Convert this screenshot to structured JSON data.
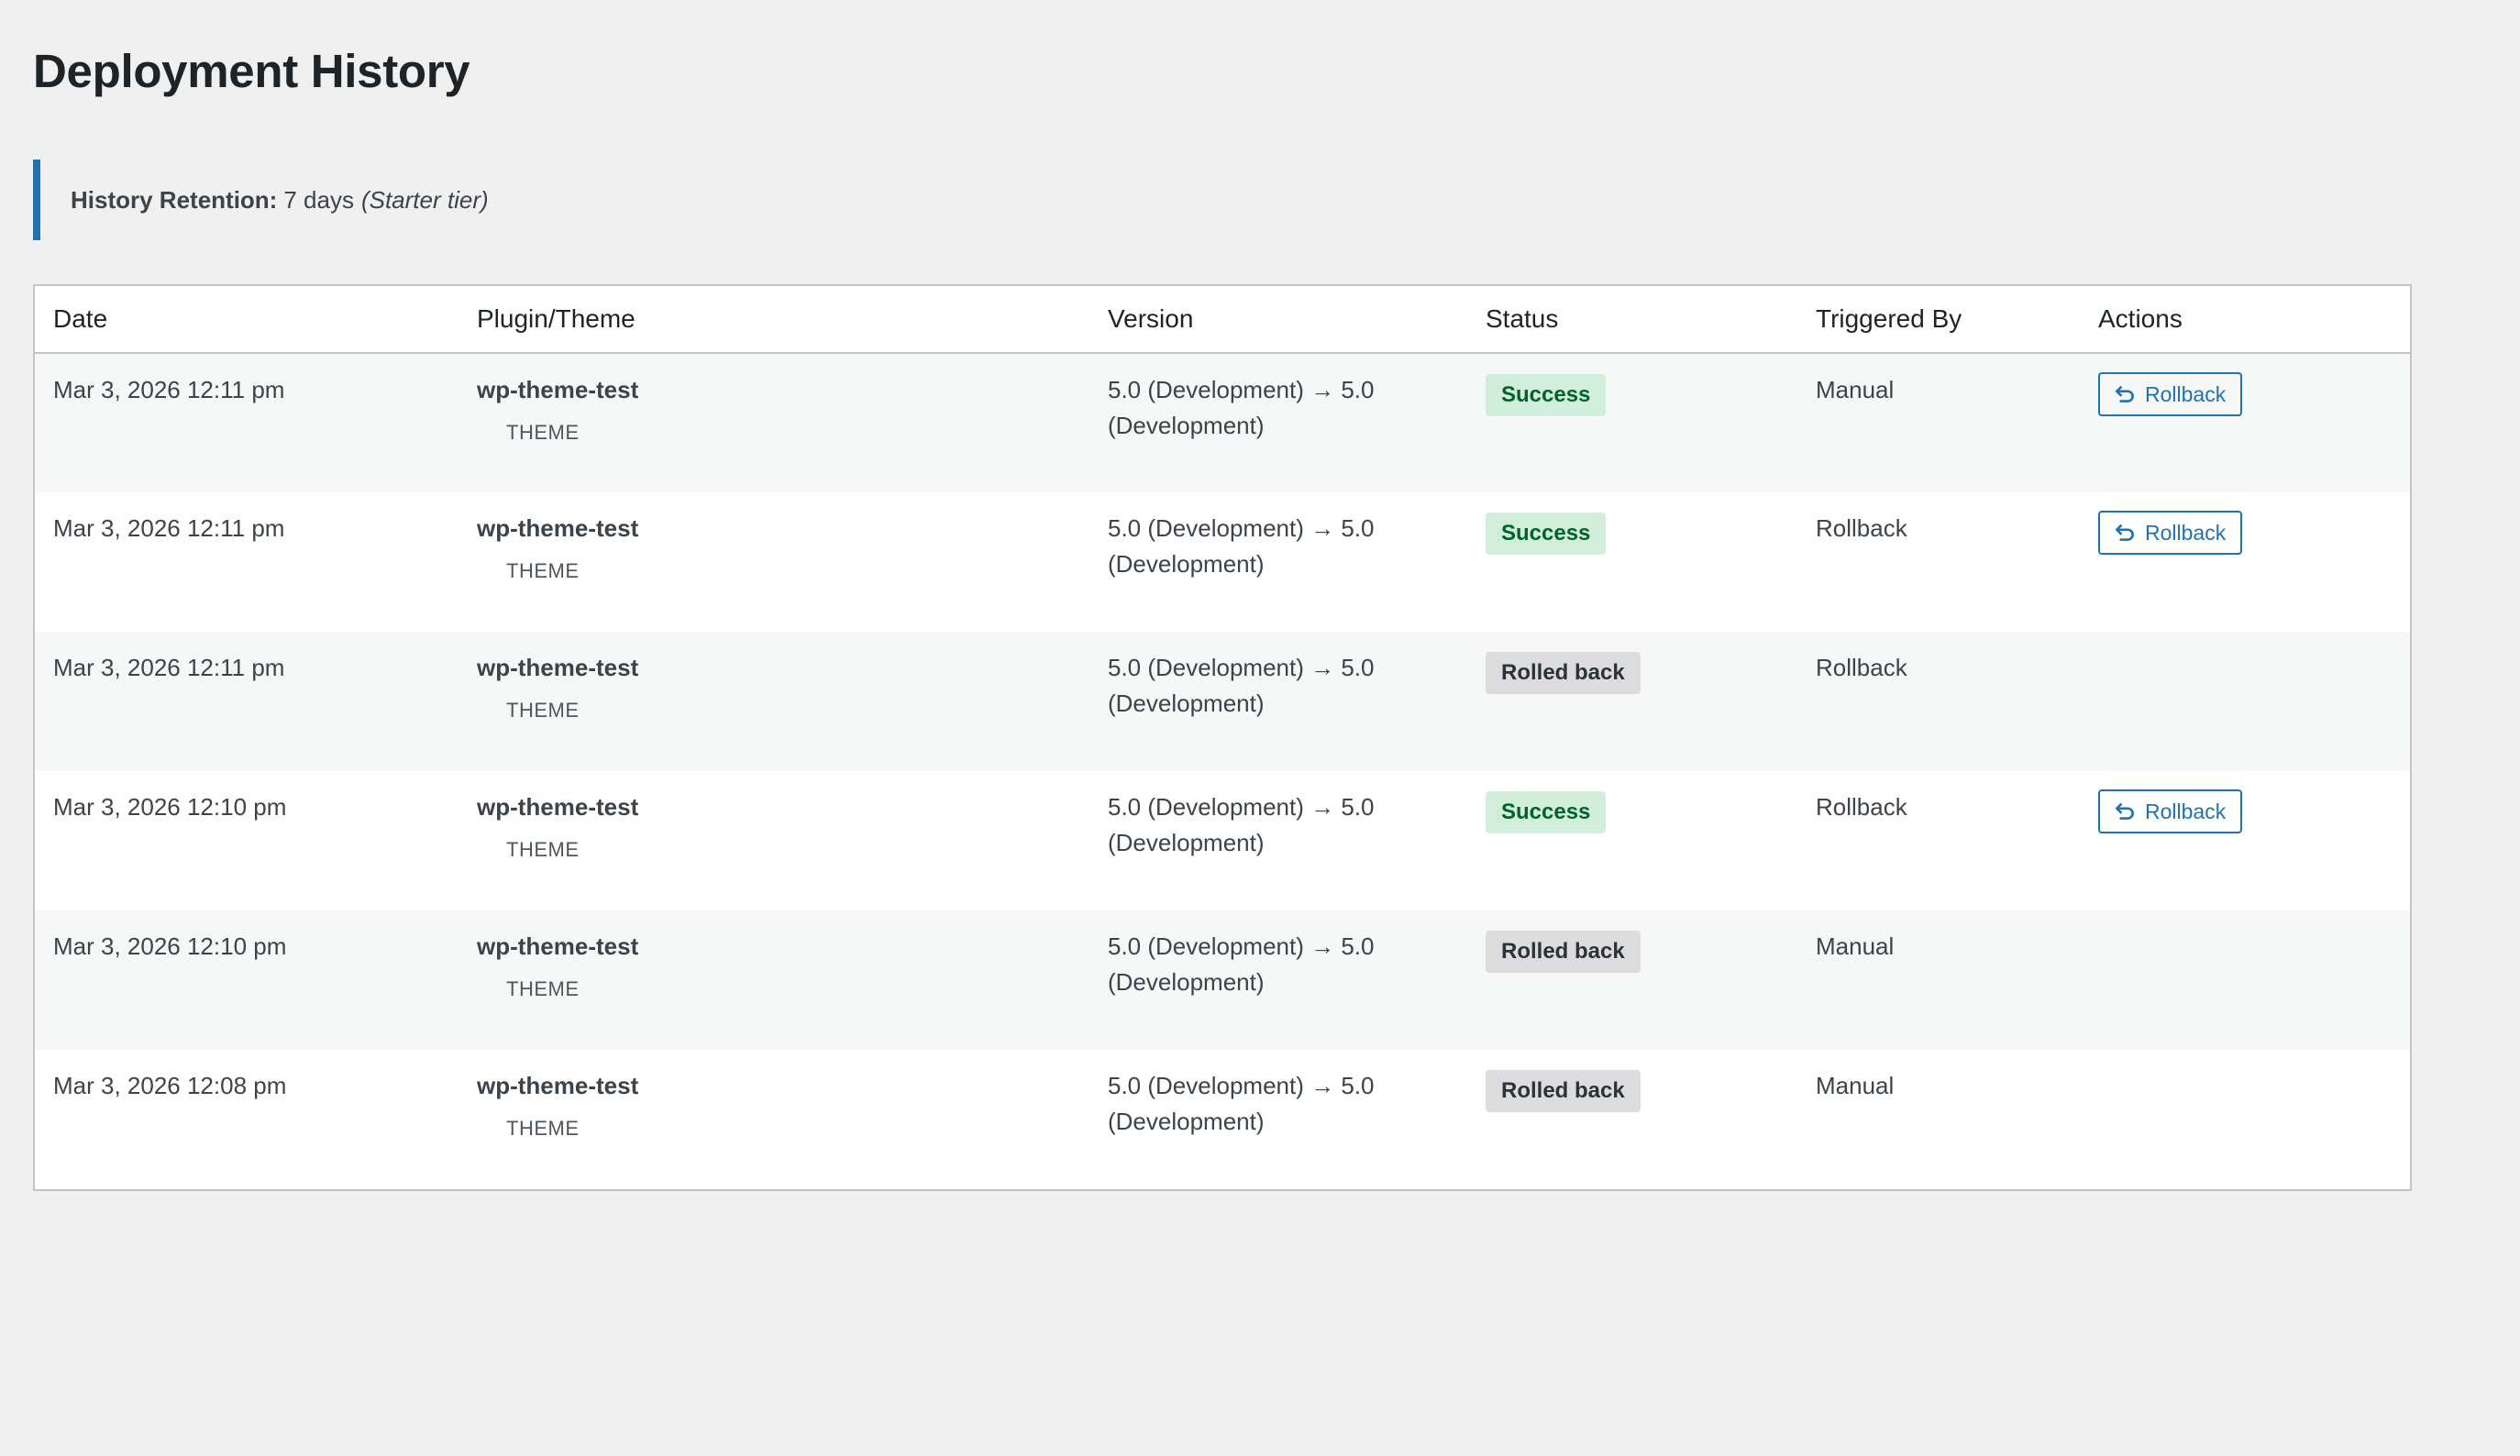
{
  "page": {
    "title": "Deployment History"
  },
  "notice": {
    "label": "History Retention:",
    "value": "7 days",
    "tier": "(Starter tier)"
  },
  "colors": {
    "accent": "#2271b1",
    "success_bg": "#d1eedb",
    "success_text": "#00632a",
    "rolled_bg": "#dcdcde"
  },
  "table": {
    "headers": [
      "Date",
      "Plugin/Theme",
      "Version",
      "Status",
      "Triggered By",
      "Actions"
    ],
    "rows": [
      {
        "date": "Mar 3, 2026 12:11 pm",
        "name": "wp-theme-test",
        "type": "THEME",
        "version": "5.0 (Development) → 5.0 (Development)",
        "status": "Success",
        "status_kind": "success",
        "triggered_by": "Manual",
        "action": "Rollback"
      },
      {
        "date": "Mar 3, 2026 12:11 pm",
        "name": "wp-theme-test",
        "type": "THEME",
        "version": "5.0 (Development) → 5.0 (Development)",
        "status": "Success",
        "status_kind": "success",
        "triggered_by": "Rollback",
        "action": "Rollback"
      },
      {
        "date": "Mar 3, 2026 12:11 pm",
        "name": "wp-theme-test",
        "type": "THEME",
        "version": "5.0 (Development) → 5.0 (Development)",
        "status": "Rolled back",
        "status_kind": "rolled",
        "triggered_by": "Rollback",
        "action": ""
      },
      {
        "date": "Mar 3, 2026 12:10 pm",
        "name": "wp-theme-test",
        "type": "THEME",
        "version": "5.0 (Development) → 5.0 (Development)",
        "status": "Success",
        "status_kind": "success",
        "triggered_by": "Rollback",
        "action": "Rollback"
      },
      {
        "date": "Mar 3, 2026 12:10 pm",
        "name": "wp-theme-test",
        "type": "THEME",
        "version": "5.0 (Development) → 5.0 (Development)",
        "status": "Rolled back",
        "status_kind": "rolled",
        "triggered_by": "Manual",
        "action": ""
      },
      {
        "date": "Mar 3, 2026 12:08 pm",
        "name": "wp-theme-test",
        "type": "THEME",
        "version": "5.0 (Development) → 5.0 (Development)",
        "status": "Rolled back",
        "status_kind": "rolled",
        "triggered_by": "Manual",
        "action": ""
      }
    ]
  },
  "icons": {
    "rollback": "undo-arrow-icon"
  }
}
